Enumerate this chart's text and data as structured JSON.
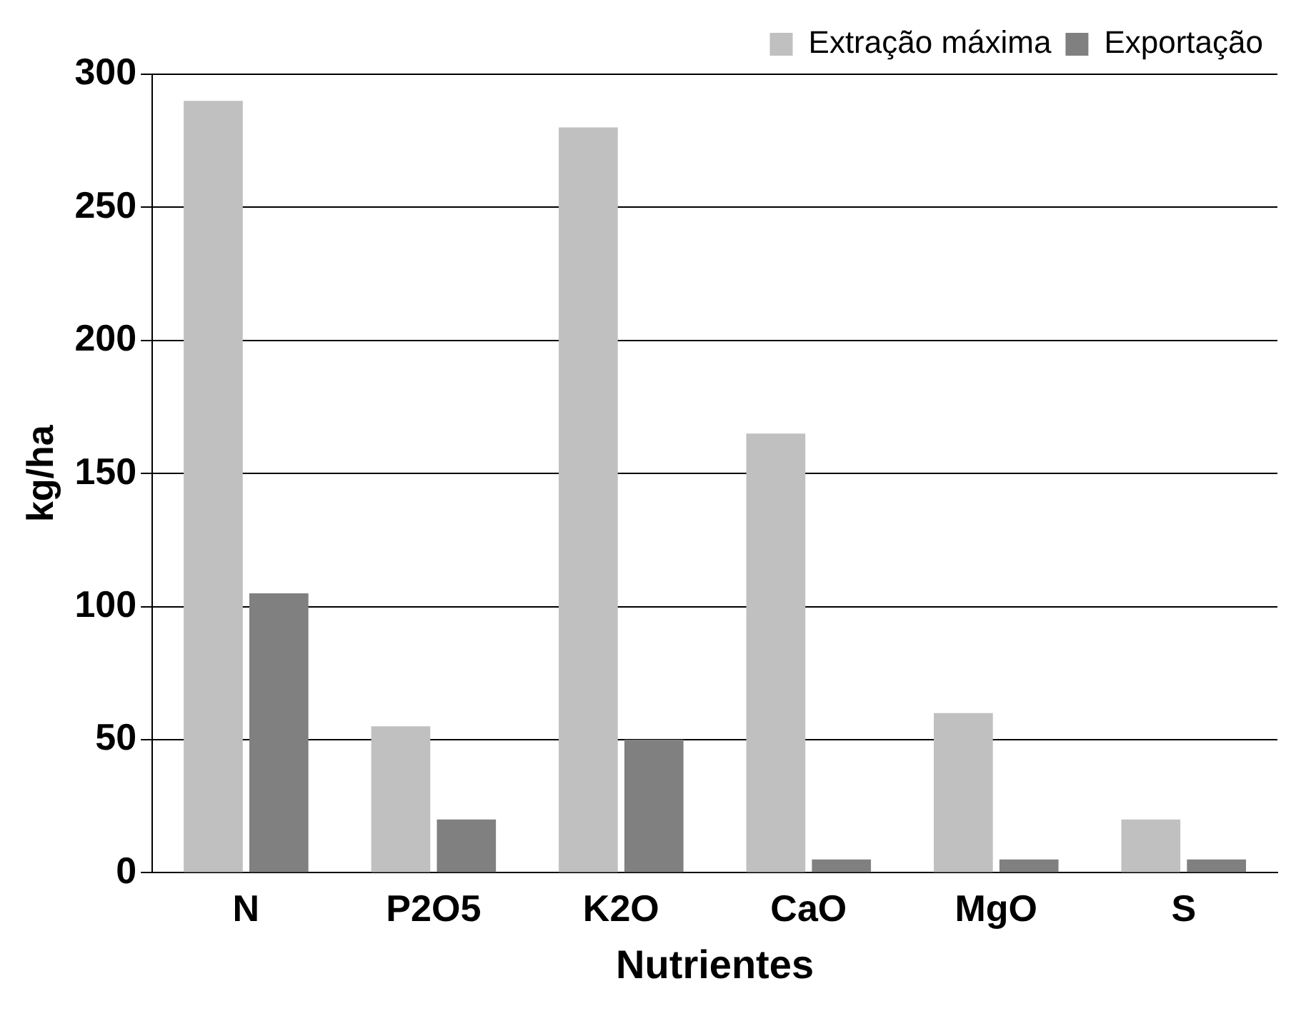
{
  "chart_data": {
    "type": "bar",
    "xlabel": "Nutrientes",
    "ylabel": "kg/ha",
    "categories": [
      "N",
      "P2O5",
      "K2O",
      "CaO",
      "MgO",
      "S"
    ],
    "series": [
      {
        "name": "Extração máxima",
        "color": "#c0c0c0",
        "values": [
          290,
          55,
          280,
          165,
          60,
          20
        ]
      },
      {
        "name": "Exportação",
        "color": "#808080",
        "values": [
          105,
          20,
          50,
          5,
          5,
          5
        ]
      }
    ],
    "ylim": [
      0,
      300
    ],
    "yticks": [
      0,
      50,
      100,
      150,
      200,
      250,
      300
    ],
    "grid": "y",
    "legend": "top right"
  }
}
